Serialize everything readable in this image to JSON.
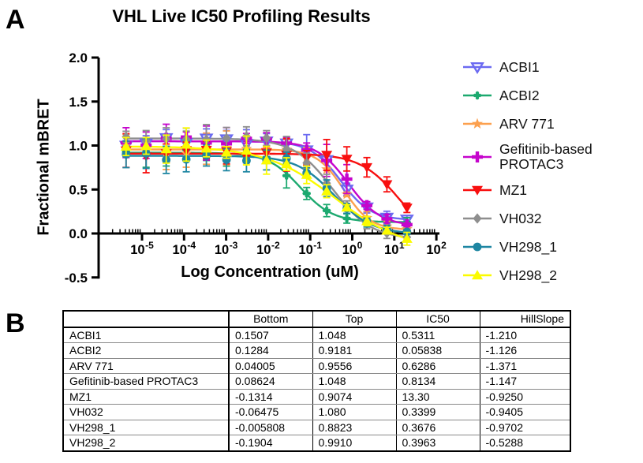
{
  "panels": {
    "a_label": "A",
    "b_label": "B"
  },
  "chart_data": {
    "type": "line",
    "title": "VHL Live IC50 Profiling Results",
    "xlabel": "Log Concentration (uM)",
    "ylabel": "Fractional mBRET",
    "x_scale": "log10",
    "x_tick_exponents": [
      -5,
      -4,
      -3,
      -2,
      -1,
      0,
      1,
      2
    ],
    "y_ticks": [
      -0.5,
      0.0,
      0.5,
      1.0,
      1.5,
      2.0
    ],
    "y_tick_labels": [
      "-0.5",
      "0.0",
      "0.5",
      "1.0",
      "1.5",
      "2.0"
    ],
    "ylim": [
      -0.5,
      2.0
    ],
    "legend_position": "right",
    "grid": false,
    "model": "Y = Bottom + (Top - Bottom) / (1 + 10^((log10(IC50) - log10(X)) * HillSlope))",
    "concentrations_uM": [
      4.18e-06,
      1.25e-05,
      3.76e-05,
      0.000113,
      0.000339,
      0.00102,
      0.00305,
      0.00914,
      0.0274,
      0.0823,
      0.247,
      0.741,
      2.22,
      6.67,
      20.0
    ],
    "series": [
      {
        "name": "ACBI1",
        "legend_lines": [
          "ACBI1"
        ],
        "marker": "triangle-down-open",
        "color": "#6b6af1",
        "bottom": 0.1507,
        "top": 1.048,
        "ic50": 0.5311,
        "hillslope": -1.21
      },
      {
        "name": "ACBI2",
        "legend_lines": [
          "ACBI2"
        ],
        "marker": "clover",
        "color": "#1ca96f",
        "bottom": 0.1284,
        "top": 0.9181,
        "ic50": 0.05838,
        "hillslope": -1.126
      },
      {
        "name": "ARV 771",
        "legend_lines": [
          "ARV 771"
        ],
        "marker": "star",
        "color": "#fca04e",
        "bottom": 0.04005,
        "top": 0.9556,
        "ic50": 0.6286,
        "hillslope": -1.371
      },
      {
        "name": "Gefitinib-based PROTAC3",
        "legend_lines": [
          "Gefitinib-based",
          "PROTAC3"
        ],
        "marker": "plus",
        "color": "#c505cc",
        "bottom": 0.08624,
        "top": 1.048,
        "ic50": 0.8134,
        "hillslope": -1.147
      },
      {
        "name": "MZ1",
        "legend_lines": [
          "MZ1"
        ],
        "marker": "triangle-down",
        "color": "#f80f0f",
        "bottom": -0.1314,
        "top": 0.9074,
        "ic50": 13.3,
        "hillslope": -0.925
      },
      {
        "name": "VH032",
        "legend_lines": [
          "VH032"
        ],
        "marker": "diamond",
        "color": "#8e8e8e",
        "bottom": -0.06475,
        "top": 1.08,
        "ic50": 0.3399,
        "hillslope": -0.9405
      },
      {
        "name": "VH298_1",
        "legend_lines": [
          "VH298_1"
        ],
        "marker": "circle",
        "color": "#1e86a2",
        "bottom": -0.005808,
        "top": 0.8823,
        "ic50": 0.3676,
        "hillslope": -0.9702
      },
      {
        "name": "VH298_2",
        "legend_lines": [
          "VH298_2"
        ],
        "marker": "triangle-up",
        "color": "#fbfb00",
        "bottom": -0.1904,
        "top": 0.991,
        "ic50": 0.3963,
        "hillslope": -0.5288
      }
    ]
  },
  "table": {
    "headers": [
      "",
      "Bottom",
      "Top",
      "IC50",
      "HillSlope"
    ],
    "rows": [
      [
        "ACBI1",
        "0.1507",
        "1.048",
        "0.5311",
        "-1.210"
      ],
      [
        "ACBI2",
        "0.1284",
        "0.9181",
        "0.05838",
        "-1.126"
      ],
      [
        "ARV 771",
        "0.04005",
        "0.9556",
        "0.6286",
        "-1.371"
      ],
      [
        "Gefitinib-based PROTAC3",
        "0.08624",
        "1.048",
        "0.8134",
        "-1.147"
      ],
      [
        "MZ1",
        "-0.1314",
        "0.9074",
        "13.30",
        "-0.9250"
      ],
      [
        "VH032",
        "-0.06475",
        "1.080",
        "0.3399",
        "-0.9405"
      ],
      [
        "VH298_1",
        "-0.005808",
        "0.8823",
        "0.3676",
        "-0.9702"
      ],
      [
        "VH298_2",
        "-0.1904",
        "0.9910",
        "0.3963",
        "-0.5288"
      ]
    ]
  }
}
